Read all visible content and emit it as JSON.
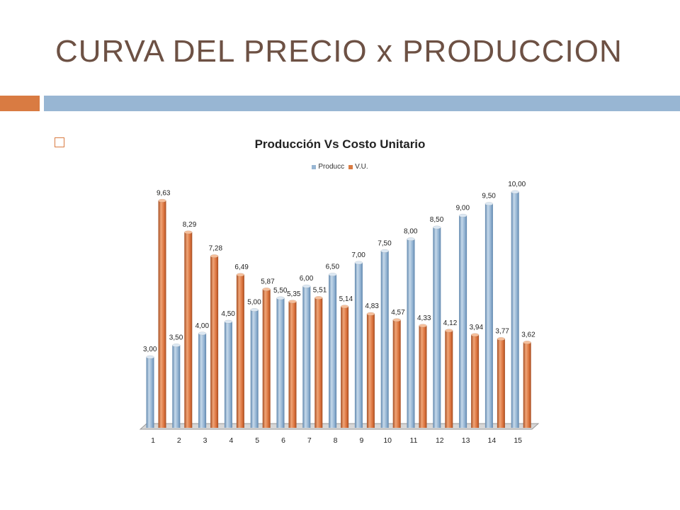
{
  "slide": {
    "title": "CURVA  DEL PRECIO x PRODUCCION"
  },
  "colors": {
    "accent_orange": "#d97b42",
    "accent_blue": "#98b6d3",
    "title_brown": "#6d5144"
  },
  "icons": {
    "bullet": "square-bullet-icon"
  },
  "chart_data": {
    "type": "bar",
    "title": "Producción Vs  Costo Unitario",
    "categories": [
      "1",
      "2",
      "3",
      "4",
      "5",
      "6",
      "7",
      "8",
      "9",
      "10",
      "11",
      "12",
      "13",
      "14",
      "15"
    ],
    "series": [
      {
        "name": "Producc",
        "color": "#98b6d3",
        "values": [
          3.0,
          3.5,
          4.0,
          4.5,
          5.0,
          5.5,
          6.0,
          6.5,
          7.0,
          7.5,
          8.0,
          8.5,
          9.0,
          9.5,
          10.0
        ],
        "labels": [
          "3,00",
          "3,50",
          "4,00",
          "4,50",
          "5,00",
          "5,50",
          "6,00",
          "6,50",
          "7,00",
          "7,50",
          "8,00",
          "8,50",
          "9,00",
          "9,50",
          "10,00"
        ]
      },
      {
        "name": "V.U.",
        "color": "#d97b42",
        "values": [
          9.63,
          8.29,
          7.28,
          6.49,
          5.87,
          5.35,
          5.51,
          5.14,
          4.83,
          4.57,
          4.33,
          4.12,
          3.94,
          3.77,
          3.62
        ],
        "labels": [
          "9,63",
          "8,29",
          "7,28",
          "6,49",
          "5,87",
          "5,35",
          "5,51",
          "5,14",
          "4,83",
          "4,57",
          "4,33",
          "4,12",
          "3,94",
          "3,77",
          "3,62"
        ]
      }
    ],
    "ylim": [
      0,
      10
    ],
    "legend_position": "top",
    "grid": false,
    "style": "3d-cylinder"
  }
}
